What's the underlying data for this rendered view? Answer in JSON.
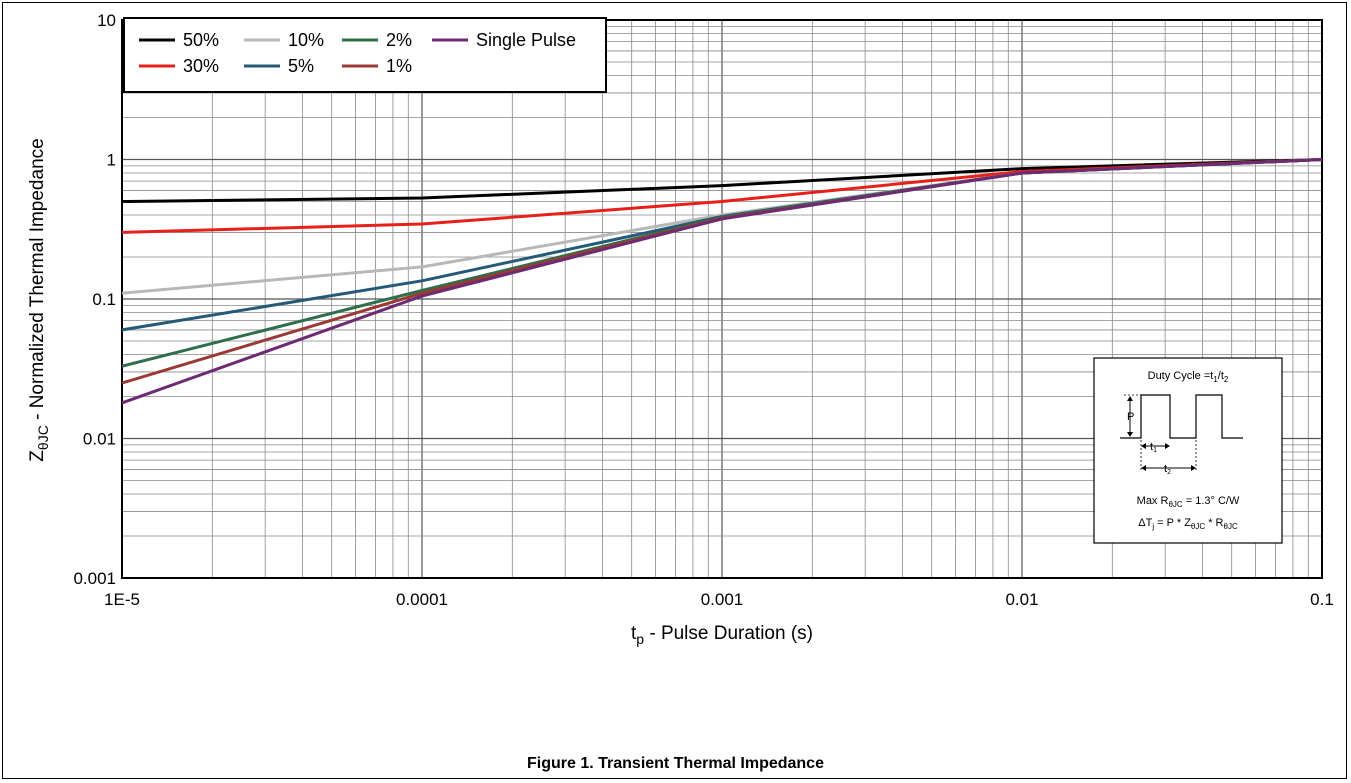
{
  "chart_data": {
    "type": "line",
    "title": "",
    "xlabel": {
      "main": "t",
      "sub": "p",
      "rest": " - Pulse Duration (s)"
    },
    "ylabel": {
      "main": "Z",
      "sub": "θJC",
      "rest": " - Normalized Thermal Impedance"
    },
    "xscale": "log",
    "yscale": "log",
    "xlim": [
      1e-05,
      0.1
    ],
    "ylim": [
      0.001,
      10
    ],
    "x_tick_labels": [
      "1E-5",
      "0.0001",
      "0.001",
      "0.01",
      "0.1"
    ],
    "y_tick_labels": [
      "0.001",
      "0.01",
      "0.1",
      "1",
      "10"
    ],
    "grid": true,
    "legend_position": "top-left",
    "series": [
      {
        "name": "50%",
        "color": "#000000",
        "x": [
          1e-05,
          0.0001,
          0.001,
          0.01,
          0.1
        ],
        "y": [
          0.5,
          0.53,
          0.65,
          0.86,
          1.0
        ]
      },
      {
        "name": "30%",
        "color": "#e8201c",
        "x": [
          1e-05,
          0.0001,
          0.001,
          0.01,
          0.1
        ],
        "y": [
          0.3,
          0.345,
          0.5,
          0.82,
          1.0
        ]
      },
      {
        "name": "10%",
        "color": "#b8b8b8",
        "x": [
          1e-05,
          0.0001,
          0.001,
          0.01,
          0.1
        ],
        "y": [
          0.11,
          0.17,
          0.4,
          0.8,
          1.0
        ]
      },
      {
        "name": "5%",
        "color": "#245a78",
        "x": [
          1e-05,
          0.0001,
          0.001,
          0.01,
          0.1
        ],
        "y": [
          0.06,
          0.135,
          0.39,
          0.8,
          1.0
        ]
      },
      {
        "name": "2%",
        "color": "#2e6e4a",
        "x": [
          1e-05,
          0.0001,
          0.001,
          0.01,
          0.1
        ],
        "y": [
          0.033,
          0.115,
          0.385,
          0.8,
          1.0
        ]
      },
      {
        "name": "1%",
        "color": "#9b3a34",
        "x": [
          1e-05,
          0.0001,
          0.001,
          0.01,
          0.1
        ],
        "y": [
          0.025,
          0.11,
          0.38,
          0.8,
          1.0
        ]
      },
      {
        "name": "Single Pulse",
        "color": "#6e2a73",
        "x": [
          1e-05,
          0.0001,
          0.001,
          0.01,
          0.1
        ],
        "y": [
          0.018,
          0.105,
          0.375,
          0.8,
          1.0
        ]
      }
    ],
    "legend_order": [
      "50%",
      "10%",
      "2%",
      "Single Pulse",
      "30%",
      "5%",
      "1%"
    ],
    "annotation": {
      "duty_cycle": "Duty Cycle =t",
      "duty_sub1": "1",
      "duty_slash": "/t",
      "duty_sub2": "2",
      "p_label": "P",
      "t1_label": "t",
      "t1_sub": "1",
      "t2_label": "t",
      "t2_sub": "2",
      "max_r": "Max R",
      "max_r_sub": "θJC",
      "max_r_value": " = 1.3° C/W",
      "delta_t": "ΔT",
      "delta_t_sub": "j",
      "delta_t_eq": " = P * Z",
      "z_sub": "θJC",
      "times_r": " * R",
      "r_sub": "θJC"
    }
  },
  "caption": "Figure 1. Transient Thermal Impedance"
}
